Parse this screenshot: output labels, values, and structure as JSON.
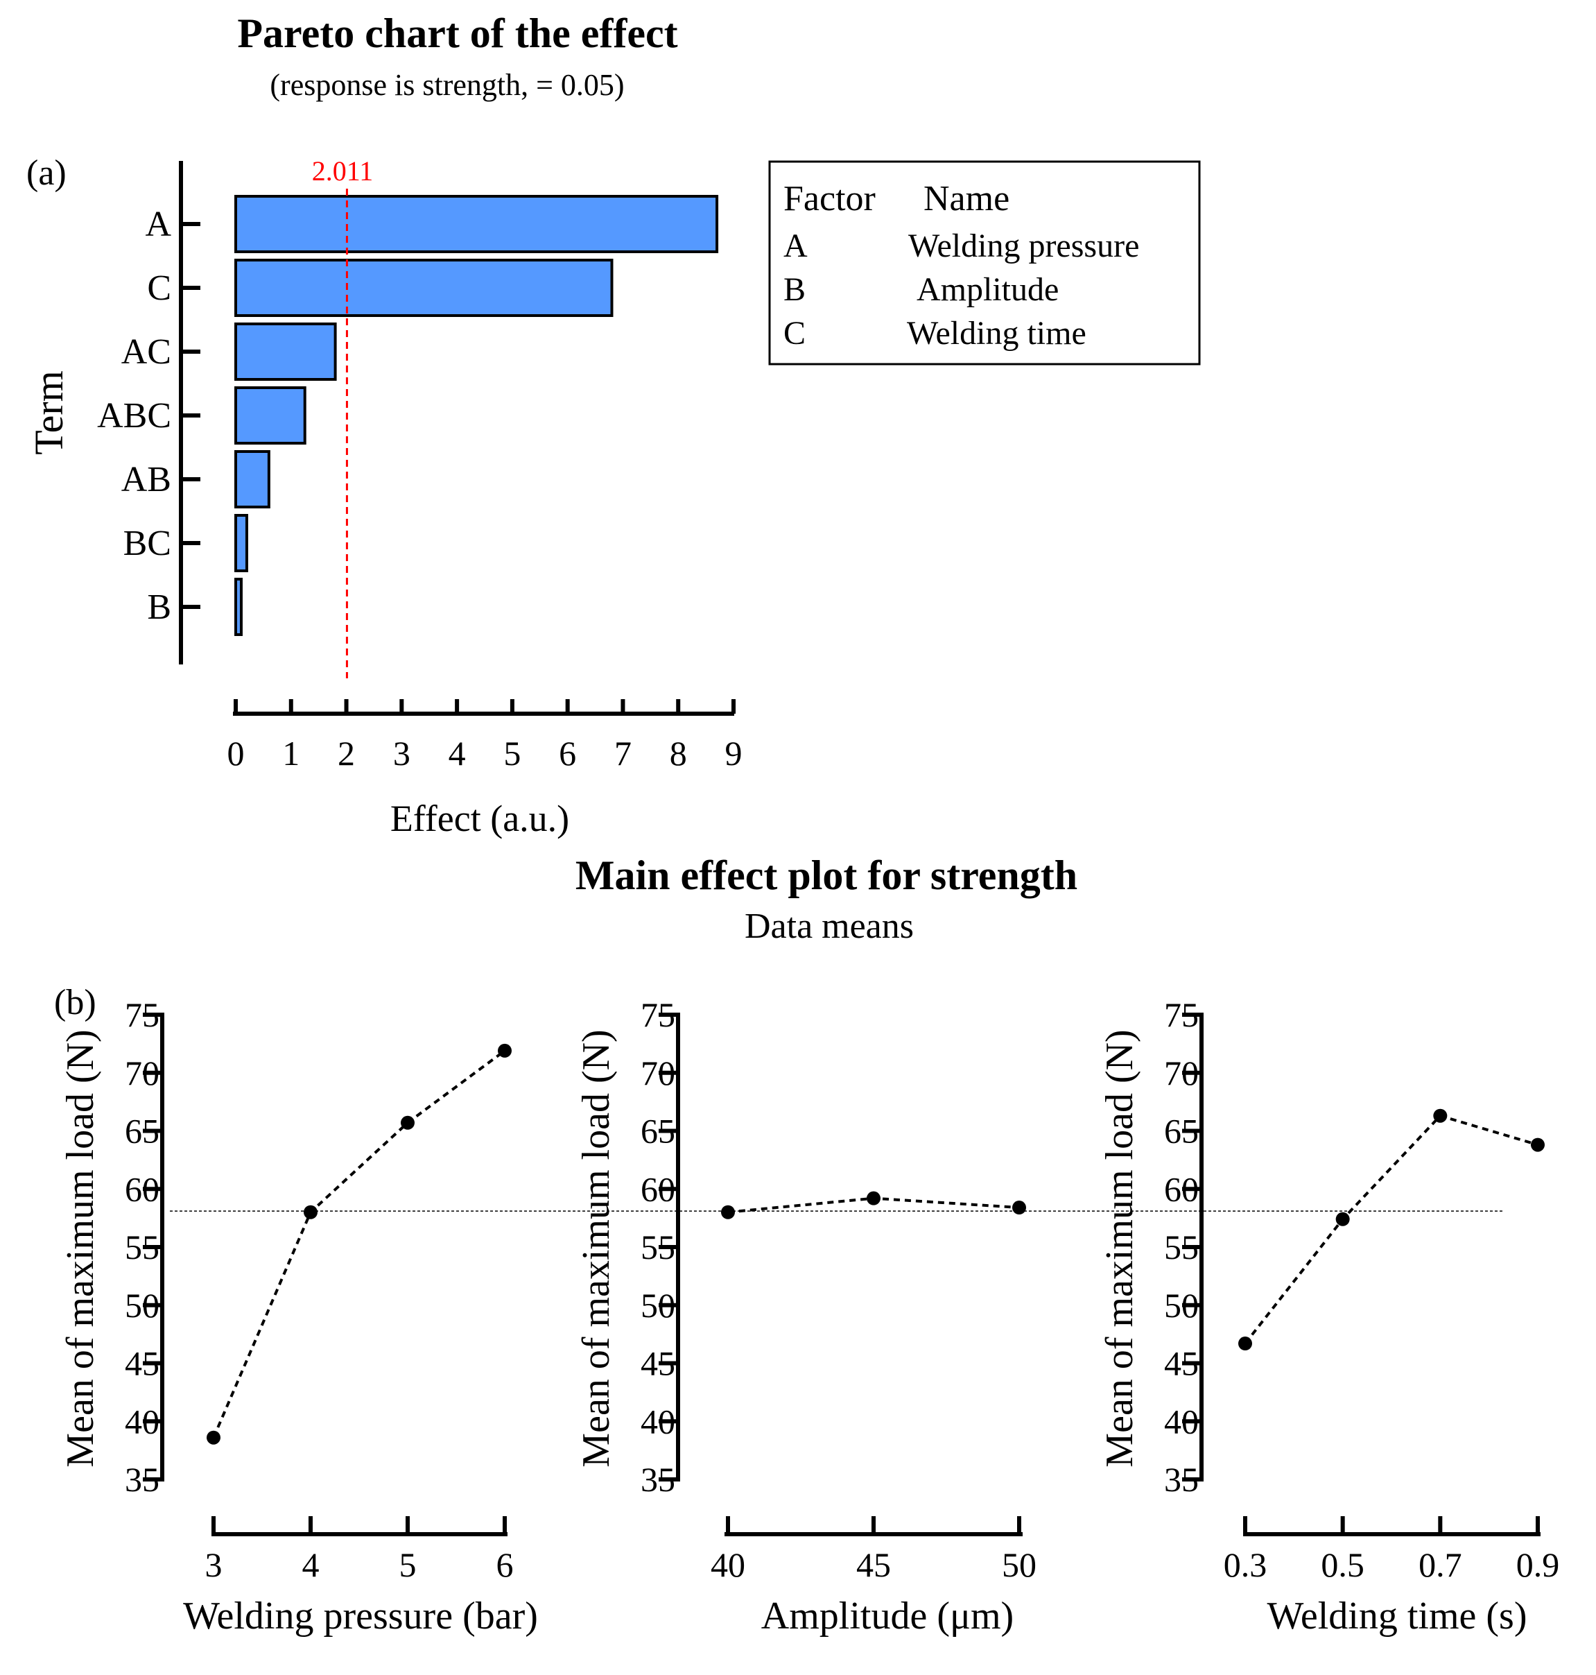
{
  "colors": {
    "bar_fill": "#5599ff",
    "threshold": "#ff0000",
    "ink": "#000000"
  },
  "pareto": {
    "panel_label": "(a)",
    "title": "Pareto chart of the effect",
    "subtitle": "(response is strength, = 0.05)",
    "ylabel": "Term",
    "xlabel": "Effect (a.u.)",
    "threshold_label": "2.011",
    "legend": {
      "header_factor": "Factor",
      "header_name": "Name",
      "rows": [
        {
          "factor": "A",
          "name": "Welding pressure"
        },
        {
          "factor": "B",
          "name": "Amplitude"
        },
        {
          "factor": "C",
          "name": "Welding time"
        }
      ]
    }
  },
  "main_effect": {
    "panel_label": "(b)",
    "title": "Main effect plot for strength",
    "subtitle": "Data means"
  },
  "chart_data": [
    {
      "type": "bar",
      "orientation": "horizontal",
      "title": "Pareto chart of the effect",
      "subtitle": "(response is strength, = 0.05)",
      "xlabel": "Effect (a.u.)",
      "ylabel": "Term",
      "categories": [
        "A",
        "C",
        "AC",
        "ABC",
        "AB",
        "BC",
        "B"
      ],
      "values": [
        8.7,
        6.8,
        1.8,
        1.25,
        0.6,
        0.2,
        0.1
      ],
      "reference_line": {
        "value": 2.011,
        "label": "2.011",
        "style": "dashed red"
      },
      "xlim": [
        0,
        9
      ],
      "xticks": [
        "0",
        "1",
        "2",
        "3",
        "4",
        "5",
        "6",
        "7",
        "8",
        "9"
      ]
    },
    {
      "type": "line",
      "title": "Main effect plot for strength",
      "xlabel": "Welding pressure (bar)",
      "ylabel": "Mean of maximum load (N)",
      "x": [
        3,
        4,
        5,
        6
      ],
      "xticks": [
        "3",
        "4",
        "5",
        "6"
      ],
      "values": [
        38.6,
        58.0,
        65.7,
        71.9
      ],
      "ylim": [
        35,
        75
      ],
      "yticks": [
        "35",
        "40",
        "45",
        "50",
        "55",
        "60",
        "65",
        "70",
        "75"
      ],
      "grand_mean": 58.1
    },
    {
      "type": "line",
      "xlabel": "Amplitude  (μm)",
      "ylabel": "Mean of maximum load (N)",
      "x": [
        40,
        45,
        50
      ],
      "xticks": [
        "40",
        "45",
        "50"
      ],
      "values": [
        58.0,
        59.2,
        58.4
      ],
      "ylim": [
        35,
        75
      ],
      "yticks": [
        "35",
        "40",
        "45",
        "50",
        "55",
        "60",
        "65",
        "70",
        "75"
      ],
      "grand_mean": 58.1
    },
    {
      "type": "line",
      "xlabel": "Welding time (s)",
      "ylabel": "Mean of maximum load (N)",
      "x": [
        0.3,
        0.5,
        0.7,
        0.9
      ],
      "xticks": [
        "0.3",
        "0.5",
        "0.7",
        "0.9"
      ],
      "values": [
        46.7,
        57.4,
        66.3,
        63.8
      ],
      "ylim": [
        35,
        75
      ],
      "yticks": [
        "35",
        "40",
        "45",
        "50",
        "55",
        "60",
        "65",
        "70",
        "75"
      ],
      "grand_mean": 58.1
    }
  ]
}
